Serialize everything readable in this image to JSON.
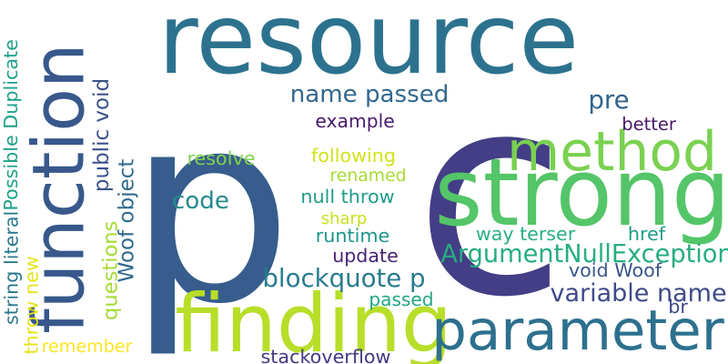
{
  "words": [
    {
      "text": "resource",
      "color": "#2c728e"
    },
    {
      "text": "p",
      "color": "#365d8d"
    },
    {
      "text": "c",
      "color": "#433e85"
    },
    {
      "text": "strong",
      "color": "#54c568"
    },
    {
      "text": "finding",
      "color": "#b8de29"
    },
    {
      "text": "parameter",
      "color": "#2d708e"
    },
    {
      "text": "function",
      "color": "#38588c"
    },
    {
      "text": "method",
      "color": "#7ad151"
    },
    {
      "text": "ArgumentNullException",
      "color": "#27ad81"
    },
    {
      "text": "variable name",
      "color": "#3e4a89"
    },
    {
      "text": "name passed",
      "color": "#31688e"
    },
    {
      "text": "pre",
      "color": "#33638d"
    },
    {
      "text": "code",
      "color": "#238a8d"
    },
    {
      "text": "blockquote p",
      "color": "#287c8e"
    },
    {
      "text": "example",
      "color": "#481a6c"
    },
    {
      "text": "better",
      "color": "#481668"
    },
    {
      "text": "following",
      "color": "#d2e21b"
    },
    {
      "text": "resolve",
      "color": "#7fd34e"
    },
    {
      "text": "renamed",
      "color": "#a8db34"
    },
    {
      "text": "null throw",
      "color": "#1e9c89"
    },
    {
      "text": "sharp",
      "color": "#c8e020"
    },
    {
      "text": "runtime",
      "color": "#1f958b"
    },
    {
      "text": "way terser",
      "color": "#2ab07f"
    },
    {
      "text": "href",
      "color": "#1f9e89"
    },
    {
      "text": "update",
      "color": "#482374"
    },
    {
      "text": "void Woof",
      "color": "#39568c"
    },
    {
      "text": "passed",
      "color": "#21a685"
    },
    {
      "text": "br",
      "color": "#3f4889"
    },
    {
      "text": "remember",
      "color": "#fde725"
    },
    {
      "text": "stackoverflow",
      "color": "#443983"
    },
    {
      "text": "Possible Duplicate",
      "color": "#1fa188"
    },
    {
      "text": "string literal",
      "color": "#2a788e"
    },
    {
      "text": "throw new",
      "color": "#e5e419"
    },
    {
      "text": "public void",
      "color": "#3b528b"
    },
    {
      "text": "questions",
      "color": "#a5db36"
    },
    {
      "text": "Woof object",
      "color": "#30698e"
    }
  ]
}
